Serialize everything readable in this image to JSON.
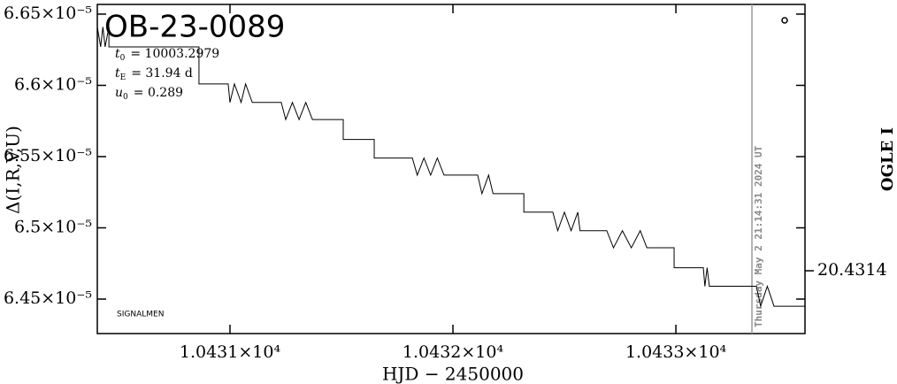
{
  "chart_data": {
    "type": "line",
    "title": "OB-23-0089",
    "x_label": "HJD − 2450000",
    "y_label": "Δ(I,R,V,U)",
    "y2_label": "OGLE I",
    "footnote": "SIGNALMEN",
    "params": [
      {
        "name": "t",
        "sub": "0",
        "text": "= 10003.2979"
      },
      {
        "name": "t",
        "sub": "E",
        "text": "= 31.94 d"
      },
      {
        "name": "u",
        "sub": "0",
        "text": "= 0.289"
      }
    ],
    "now_line": {
      "x": 10433.341,
      "label": "Thursday May  2 21:14:31 2024 UT"
    },
    "xlim": [
      10430.405,
      10433.579
    ],
    "xticks": [
      {
        "value": 10431,
        "label": "1.0431×10⁴"
      },
      {
        "value": 10432,
        "label": "1.0432×10⁴"
      },
      {
        "value": 10433,
        "label": "1.0433×10⁴"
      }
    ],
    "ylim": [
      6.4258e-05,
      6.6568e-05
    ],
    "yticks": [
      {
        "value": 6.65e-05,
        "label": "6.65×10⁻⁵"
      },
      {
        "value": 6.6e-05,
        "label": "6.6×10⁻⁵"
      },
      {
        "value": 6.55e-05,
        "label": "6.55×10⁻⁵"
      },
      {
        "value": 6.5e-05,
        "label": "6.5×10⁻⁵"
      },
      {
        "value": 6.45e-05,
        "label": "6.45×10⁻⁵"
      }
    ],
    "y2lim": [
      20.43135,
      20.431612
    ],
    "y2ticks": [
      20.4314
    ],
    "x": [
      10430.405,
      10430.42,
      10430.43,
      10430.44,
      10430.457,
      10430.457,
      10430.861,
      10430.861,
      10430.992,
      10431.0,
      10431.02,
      10431.05,
      10431.07,
      10431.1,
      10431.23,
      10431.25,
      10431.28,
      10431.31,
      10431.34,
      10431.37,
      10431.508,
      10431.508,
      10431.647,
      10431.647,
      10431.818,
      10431.84,
      10431.87,
      10431.9,
      10431.93,
      10431.96,
      10432.111,
      10432.13,
      10432.16,
      10432.18,
      10432.318,
      10432.318,
      10432.448,
      10432.47,
      10432.5,
      10432.53,
      10432.56,
      10432.57,
      10432.69,
      10432.72,
      10432.76,
      10432.8,
      10432.84,
      10432.87,
      10432.992,
      10432.992,
      10433.123,
      10433.13,
      10433.14,
      10433.15,
      10433.361,
      10433.38,
      10433.41,
      10433.44,
      10433.579
    ],
    "series": [
      {
        "color": "#000000",
        "values": [
          6.641e-05,
          6.627e-05,
          6.641e-05,
          6.627e-05,
          6.641e-05,
          6.627e-05,
          6.627e-05,
          6.601e-05,
          6.601e-05,
          6.588e-05,
          6.601e-05,
          6.588e-05,
          6.601e-05,
          6.588e-05,
          6.588e-05,
          6.576e-05,
          6.588e-05,
          6.576e-05,
          6.588e-05,
          6.576e-05,
          6.576e-05,
          6.562e-05,
          6.562e-05,
          6.549e-05,
          6.549e-05,
          6.537e-05,
          6.549e-05,
          6.537e-05,
          6.549e-05,
          6.537e-05,
          6.537e-05,
          6.524e-05,
          6.537e-05,
          6.524e-05,
          6.524e-05,
          6.511e-05,
          6.511e-05,
          6.498e-05,
          6.511e-05,
          6.498e-05,
          6.511e-05,
          6.498e-05,
          6.498e-05,
          6.486e-05,
          6.498e-05,
          6.486e-05,
          6.498e-05,
          6.486e-05,
          6.486e-05,
          6.472e-05,
          6.472e-05,
          6.459e-05,
          6.472e-05,
          6.459e-05,
          6.459e-05,
          6.445e-05,
          6.459e-05,
          6.445e-05,
          6.445e-05
        ]
      }
    ]
  }
}
